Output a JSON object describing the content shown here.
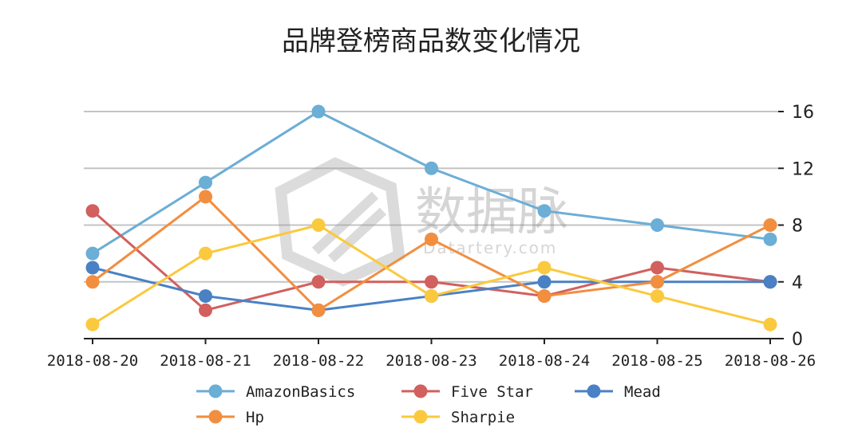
{
  "chart_data": {
    "type": "line",
    "title": "品牌登榜商品数变化情况",
    "xlabel": "",
    "ylabel": "",
    "ylim": [
      0,
      16
    ],
    "yticks": [
      0,
      4,
      8,
      12,
      16
    ],
    "y_axis_position": "right",
    "grid": "horizontal",
    "legend_position": "bottom",
    "x": [
      "2018-08-20",
      "2018-08-21",
      "2018-08-22",
      "2018-08-23",
      "2018-08-24",
      "2018-08-25",
      "2018-08-26"
    ],
    "series": [
      {
        "name": "AmazonBasics",
        "color": "#6baed6",
        "values": [
          6,
          11,
          16,
          12,
          9,
          8,
          7
        ]
      },
      {
        "name": "Five Star",
        "color": "#d1605e",
        "values": [
          9,
          2,
          4,
          4,
          3,
          5,
          4
        ]
      },
      {
        "name": "Mead",
        "color": "#4a81c4",
        "values": [
          5,
          3,
          2,
          3,
          4,
          4,
          4
        ]
      },
      {
        "name": "Hp",
        "color": "#f28e3f",
        "values": [
          4,
          10,
          2,
          7,
          3,
          4,
          8
        ]
      },
      {
        "name": "Sharpie",
        "color": "#fbc93d",
        "values": [
          1,
          6,
          8,
          3,
          5,
          3,
          1
        ]
      }
    ]
  },
  "watermark": {
    "text": "数据脉",
    "subtext": "Datartery.com"
  }
}
